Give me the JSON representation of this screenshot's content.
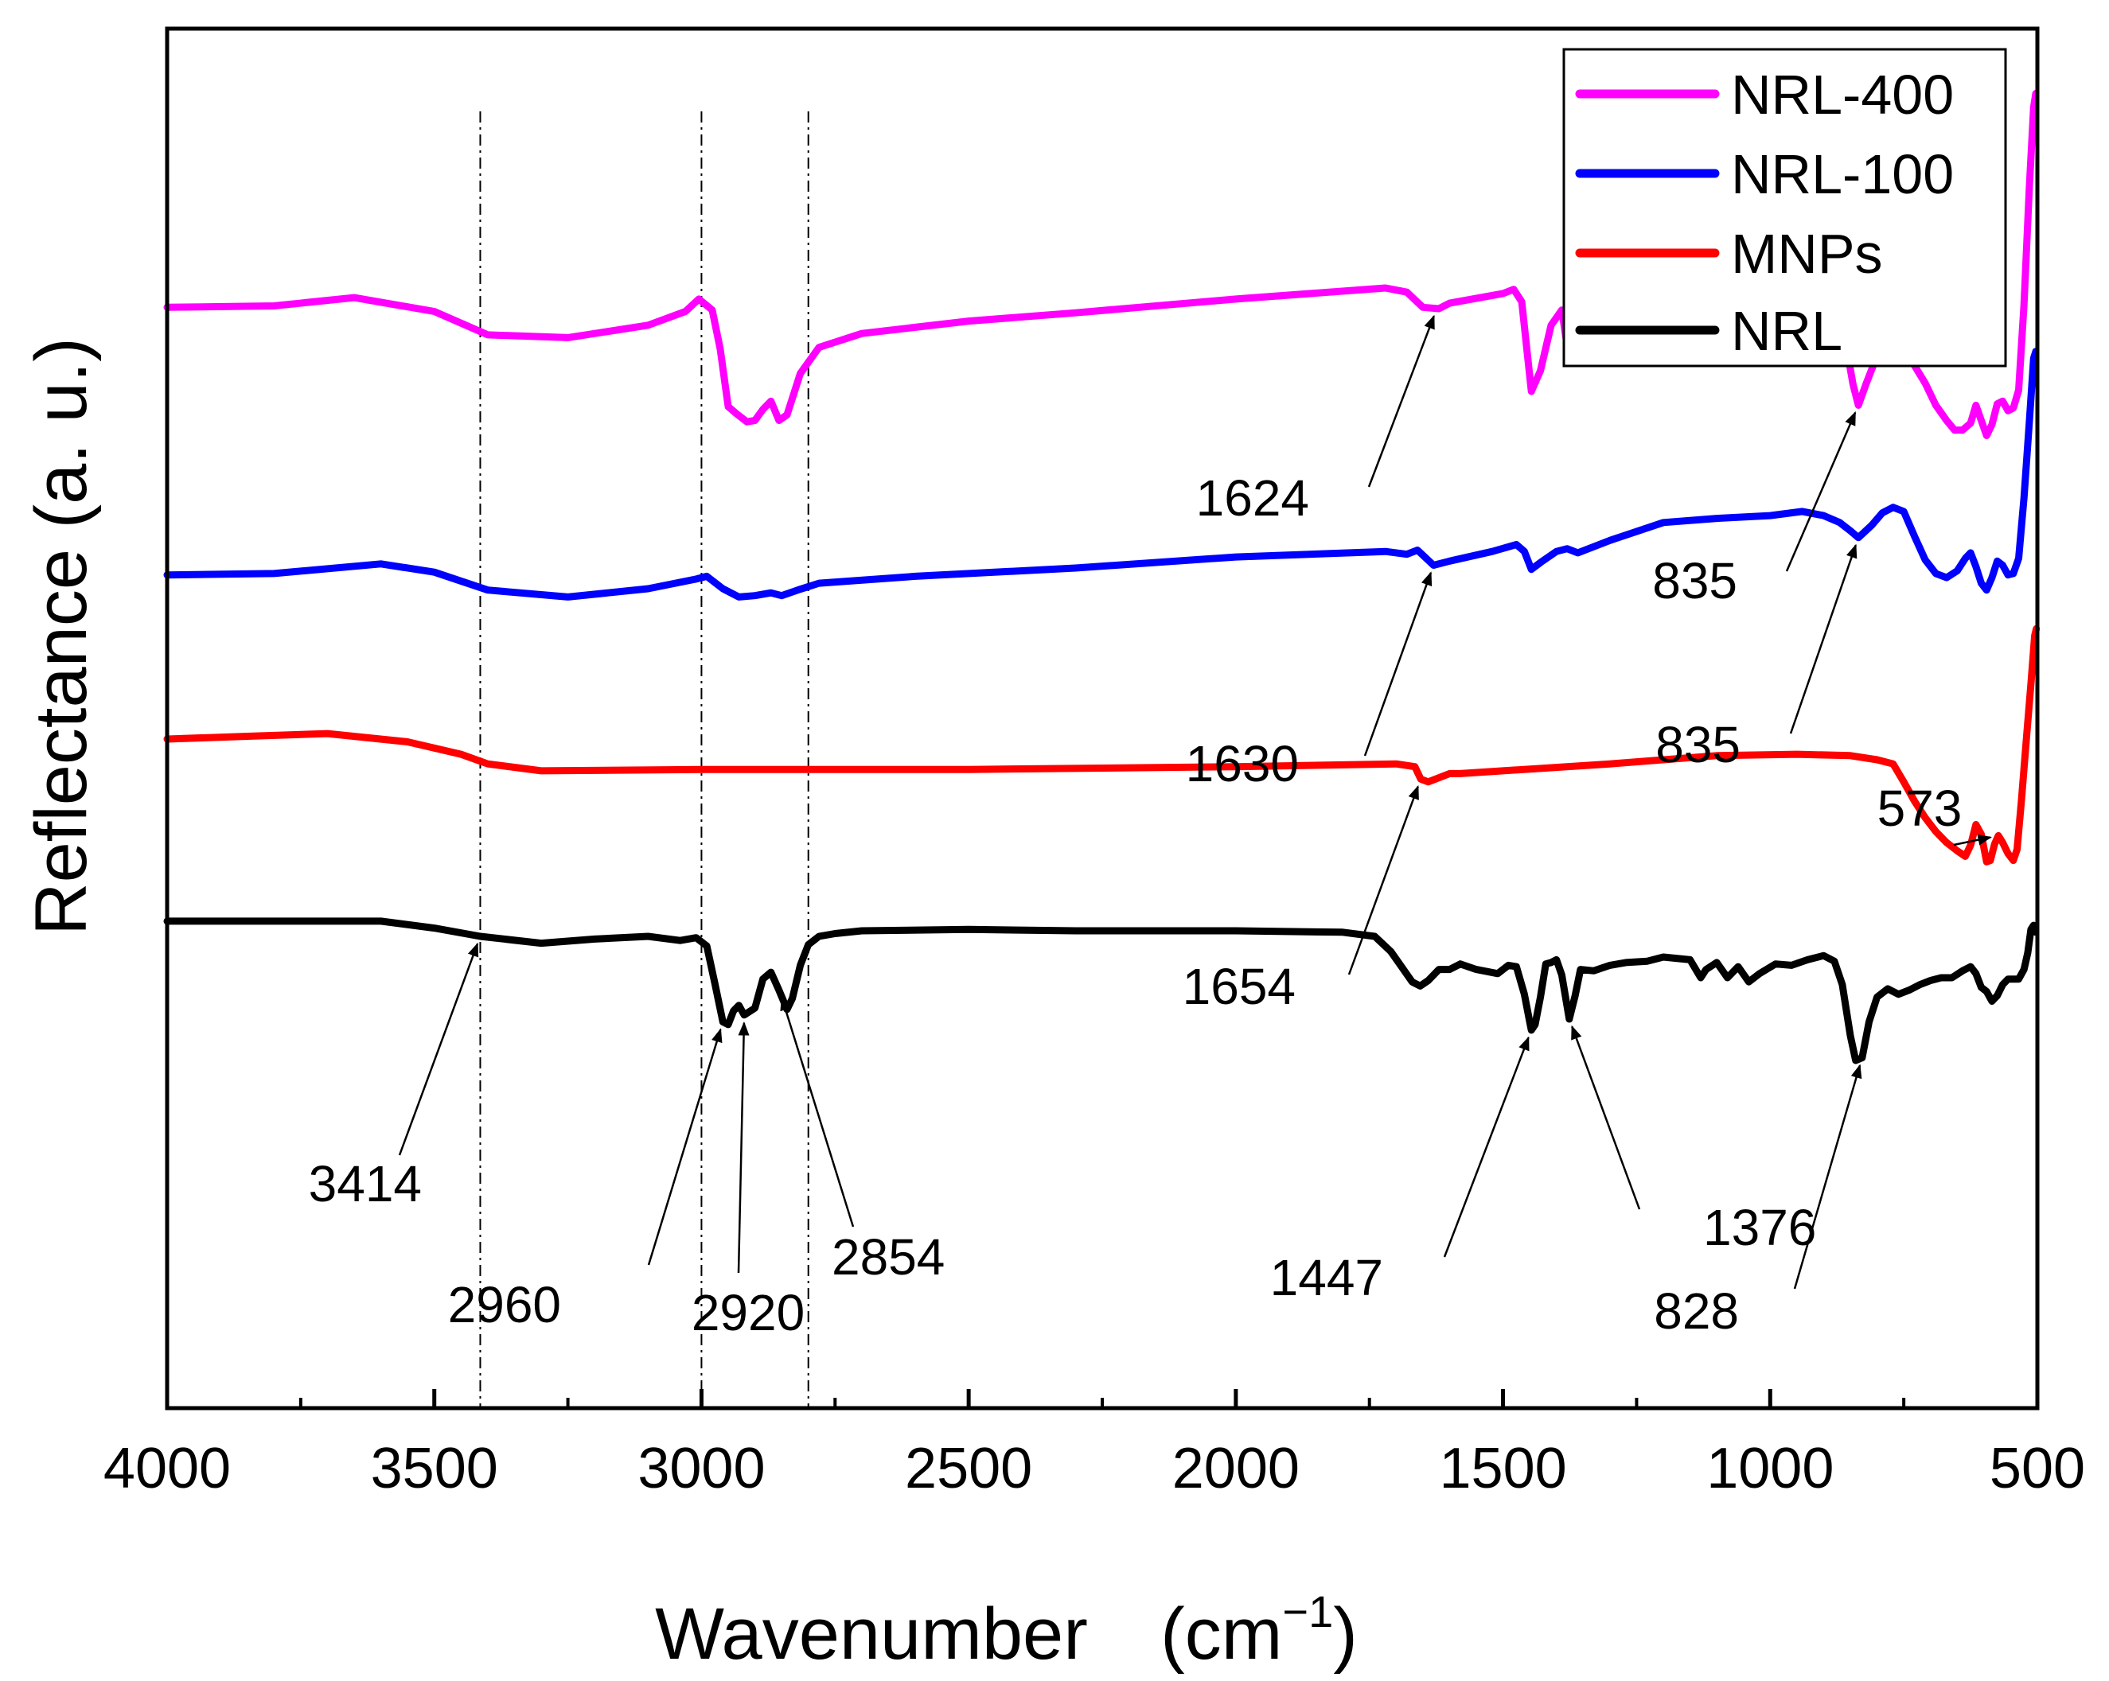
{
  "chart_data": {
    "type": "line",
    "title": "",
    "xlabel": "Wavenumber",
    "xlabel_unit": "(cm",
    "xlabel_exp": "−1",
    "xlabel_close": ")",
    "ylabel": "Reflectance (a. u.)",
    "xlim": [
      4000,
      500
    ],
    "ylim": [
      0,
      100
    ],
    "x_ticks": [
      4000,
      3500,
      3000,
      2500,
      2000,
      1500,
      1000,
      500
    ],
    "legend_position": "top-right",
    "guides": [
      3414,
      3000,
      2800
    ],
    "series": [
      {
        "name": "NRL-400",
        "color": "#ff00ff",
        "points": [
          [
            4000,
            79.8
          ],
          [
            3800,
            79.9
          ],
          [
            3650,
            80.5
          ],
          [
            3500,
            79.5
          ],
          [
            3400,
            77.8
          ],
          [
            3250,
            77.6
          ],
          [
            3100,
            78.5
          ],
          [
            3030,
            79.5
          ],
          [
            3005,
            80.4
          ],
          [
            2980,
            79.6
          ],
          [
            2965,
            76.8
          ],
          [
            2950,
            72.6
          ],
          [
            2935,
            72.1
          ],
          [
            2915,
            71.5
          ],
          [
            2900,
            71.6
          ],
          [
            2885,
            72.4
          ],
          [
            2870,
            73.0
          ],
          [
            2855,
            71.6
          ],
          [
            2840,
            72.0
          ],
          [
            2815,
            75.0
          ],
          [
            2780,
            76.9
          ],
          [
            2700,
            77.9
          ],
          [
            2500,
            78.8
          ],
          [
            2300,
            79.4
          ],
          [
            2000,
            80.4
          ],
          [
            1720,
            81.2
          ],
          [
            1680,
            80.9
          ],
          [
            1650,
            79.8
          ],
          [
            1620,
            79.7
          ],
          [
            1600,
            80.1
          ],
          [
            1500,
            80.8
          ],
          [
            1480,
            81.1
          ],
          [
            1465,
            80.2
          ],
          [
            1447,
            73.7
          ],
          [
            1430,
            75.2
          ],
          [
            1410,
            78.5
          ],
          [
            1390,
            79.6
          ],
          [
            1376,
            76.0
          ],
          [
            1360,
            78.9
          ],
          [
            1320,
            79.6
          ],
          [
            1280,
            80.1
          ],
          [
            1200,
            80.5
          ],
          [
            1160,
            81.2
          ],
          [
            1140,
            80.4
          ],
          [
            1120,
            79.8
          ],
          [
            1100,
            80.6
          ],
          [
            1080,
            80.0
          ],
          [
            1050,
            80.5
          ],
          [
            1020,
            79.9
          ],
          [
            980,
            80.2
          ],
          [
            930,
            80.5
          ],
          [
            880,
            80.1
          ],
          [
            860,
            77.5
          ],
          [
            845,
            74.2
          ],
          [
            835,
            72.7
          ],
          [
            820,
            74.3
          ],
          [
            800,
            76.3
          ],
          [
            770,
            77.2
          ],
          [
            740,
            76.2
          ],
          [
            710,
            74.3
          ],
          [
            690,
            72.7
          ],
          [
            670,
            71.6
          ],
          [
            655,
            70.9
          ],
          [
            640,
            70.9
          ],
          [
            625,
            71.4
          ],
          [
            615,
            72.7
          ],
          [
            605,
            71.6
          ],
          [
            595,
            70.5
          ],
          [
            585,
            71.3
          ],
          [
            575,
            72.8
          ],
          [
            565,
            73.0
          ],
          [
            555,
            72.3
          ],
          [
            545,
            72.5
          ],
          [
            535,
            73.8
          ],
          [
            525,
            80.0
          ],
          [
            515,
            88.5
          ],
          [
            507,
            94.3
          ],
          [
            503,
            95.3
          ]
        ]
      },
      {
        "name": "NRL-100",
        "color": "#0000ff",
        "points": [
          [
            4000,
            60.4
          ],
          [
            3800,
            60.5
          ],
          [
            3600,
            61.2
          ],
          [
            3500,
            60.6
          ],
          [
            3400,
            59.3
          ],
          [
            3250,
            58.8
          ],
          [
            3100,
            59.4
          ],
          [
            3010,
            60.1
          ],
          [
            2990,
            60.3
          ],
          [
            2960,
            59.4
          ],
          [
            2930,
            58.8
          ],
          [
            2900,
            58.9
          ],
          [
            2870,
            59.1
          ],
          [
            2850,
            58.9
          ],
          [
            2820,
            59.3
          ],
          [
            2780,
            59.8
          ],
          [
            2600,
            60.3
          ],
          [
            2300,
            60.9
          ],
          [
            2000,
            61.7
          ],
          [
            1720,
            62.1
          ],
          [
            1680,
            61.9
          ],
          [
            1660,
            62.2
          ],
          [
            1630,
            61.1
          ],
          [
            1600,
            61.4
          ],
          [
            1520,
            62.1
          ],
          [
            1475,
            62.6
          ],
          [
            1460,
            62.1
          ],
          [
            1447,
            60.8
          ],
          [
            1430,
            61.3
          ],
          [
            1400,
            62.1
          ],
          [
            1380,
            62.3
          ],
          [
            1360,
            62.0
          ],
          [
            1300,
            62.9
          ],
          [
            1200,
            64.2
          ],
          [
            1100,
            64.5
          ],
          [
            1000,
            64.7
          ],
          [
            940,
            65.0
          ],
          [
            900,
            64.7
          ],
          [
            870,
            64.2
          ],
          [
            850,
            63.6
          ],
          [
            835,
            63.1
          ],
          [
            810,
            64.0
          ],
          [
            790,
            64.9
          ],
          [
            770,
            65.3
          ],
          [
            750,
            65.0
          ],
          [
            730,
            63.2
          ],
          [
            710,
            61.5
          ],
          [
            690,
            60.5
          ],
          [
            670,
            60.2
          ],
          [
            650,
            60.7
          ],
          [
            635,
            61.6
          ],
          [
            625,
            62.0
          ],
          [
            615,
            61.0
          ],
          [
            605,
            59.8
          ],
          [
            595,
            59.3
          ],
          [
            585,
            60.2
          ],
          [
            575,
            61.4
          ],
          [
            565,
            61.1
          ],
          [
            555,
            60.4
          ],
          [
            545,
            60.5
          ],
          [
            535,
            61.6
          ],
          [
            525,
            66.0
          ],
          [
            515,
            71.5
          ],
          [
            507,
            76.1
          ],
          [
            503,
            76.6
          ]
        ]
      },
      {
        "name": "MNPs",
        "color": "#ff0000",
        "points": [
          [
            4000,
            48.5
          ],
          [
            3850,
            48.7
          ],
          [
            3700,
            48.9
          ],
          [
            3550,
            48.3
          ],
          [
            3450,
            47.4
          ],
          [
            3400,
            46.7
          ],
          [
            3300,
            46.2
          ],
          [
            3000,
            46.3
          ],
          [
            2500,
            46.3
          ],
          [
            2000,
            46.5
          ],
          [
            1700,
            46.7
          ],
          [
            1665,
            46.5
          ],
          [
            1654,
            45.6
          ],
          [
            1640,
            45.4
          ],
          [
            1600,
            46.0
          ],
          [
            1580,
            46.0
          ],
          [
            1500,
            46.2
          ],
          [
            1300,
            46.7
          ],
          [
            1100,
            47.3
          ],
          [
            950,
            47.4
          ],
          [
            850,
            47.3
          ],
          [
            800,
            47.0
          ],
          [
            770,
            46.7
          ],
          [
            750,
            45.4
          ],
          [
            730,
            44.0
          ],
          [
            710,
            42.8
          ],
          [
            690,
            41.8
          ],
          [
            670,
            41.0
          ],
          [
            650,
            40.4
          ],
          [
            635,
            40.0
          ],
          [
            625,
            40.8
          ],
          [
            615,
            42.3
          ],
          [
            605,
            41.6
          ],
          [
            595,
            39.6
          ],
          [
            588,
            39.7
          ],
          [
            580,
            40.9
          ],
          [
            573,
            41.5
          ],
          [
            565,
            41.0
          ],
          [
            555,
            40.2
          ],
          [
            545,
            39.7
          ],
          [
            538,
            40.5
          ],
          [
            530,
            44.0
          ],
          [
            520,
            48.8
          ],
          [
            512,
            52.5
          ],
          [
            505,
            56.0
          ],
          [
            502,
            56.5
          ]
        ]
      },
      {
        "name": "NRL",
        "color": "#000000",
        "points": [
          [
            4000,
            35.3
          ],
          [
            3800,
            35.3
          ],
          [
            3600,
            35.3
          ],
          [
            3500,
            34.8
          ],
          [
            3414,
            34.2
          ],
          [
            3300,
            33.7
          ],
          [
            3200,
            34.0
          ],
          [
            3100,
            34.2
          ],
          [
            3040,
            33.9
          ],
          [
            3010,
            34.1
          ],
          [
            2990,
            33.5
          ],
          [
            2975,
            30.8
          ],
          [
            2960,
            28.0
          ],
          [
            2950,
            27.8
          ],
          [
            2940,
            28.8
          ],
          [
            2930,
            29.2
          ],
          [
            2920,
            28.5
          ],
          [
            2900,
            29.0
          ],
          [
            2885,
            31.1
          ],
          [
            2870,
            31.6
          ],
          [
            2855,
            30.3
          ],
          [
            2840,
            28.9
          ],
          [
            2830,
            29.7
          ],
          [
            2815,
            32.1
          ],
          [
            2800,
            33.6
          ],
          [
            2780,
            34.2
          ],
          [
            2750,
            34.4
          ],
          [
            2700,
            34.6
          ],
          [
            2500,
            34.7
          ],
          [
            2300,
            34.6
          ],
          [
            2000,
            34.6
          ],
          [
            1800,
            34.5
          ],
          [
            1740,
            34.2
          ],
          [
            1710,
            33.1
          ],
          [
            1690,
            32.0
          ],
          [
            1670,
            30.9
          ],
          [
            1655,
            30.6
          ],
          [
            1640,
            31.0
          ],
          [
            1620,
            31.8
          ],
          [
            1600,
            31.8
          ],
          [
            1580,
            32.2
          ],
          [
            1550,
            31.8
          ],
          [
            1510,
            31.5
          ],
          [
            1490,
            32.1
          ],
          [
            1475,
            32.0
          ],
          [
            1460,
            30.0
          ],
          [
            1450,
            28.0
          ],
          [
            1447,
            27.4
          ],
          [
            1440,
            27.8
          ],
          [
            1430,
            29.8
          ],
          [
            1420,
            32.2
          ],
          [
            1410,
            32.3
          ],
          [
            1400,
            32.5
          ],
          [
            1390,
            31.4
          ],
          [
            1376,
            28.2
          ],
          [
            1365,
            29.9
          ],
          [
            1355,
            31.8
          ],
          [
            1330,
            31.7
          ],
          [
            1300,
            32.1
          ],
          [
            1270,
            32.3
          ],
          [
            1230,
            32.4
          ],
          [
            1200,
            32.7
          ],
          [
            1150,
            32.5
          ],
          [
            1130,
            31.2
          ],
          [
            1120,
            31.8
          ],
          [
            1100,
            32.3
          ],
          [
            1080,
            31.2
          ],
          [
            1060,
            32.0
          ],
          [
            1040,
            30.9
          ],
          [
            1020,
            31.5
          ],
          [
            990,
            32.2
          ],
          [
            960,
            32.1
          ],
          [
            930,
            32.5
          ],
          [
            900,
            32.8
          ],
          [
            880,
            32.4
          ],
          [
            865,
            30.7
          ],
          [
            850,
            27.0
          ],
          [
            840,
            25.2
          ],
          [
            828,
            25.4
          ],
          [
            815,
            28.0
          ],
          [
            800,
            29.8
          ],
          [
            780,
            30.4
          ],
          [
            760,
            30.0
          ],
          [
            740,
            30.3
          ],
          [
            720,
            30.7
          ],
          [
            700,
            31.0
          ],
          [
            680,
            31.2
          ],
          [
            660,
            31.2
          ],
          [
            640,
            31.7
          ],
          [
            625,
            32.0
          ],
          [
            615,
            31.5
          ],
          [
            605,
            30.5
          ],
          [
            595,
            30.2
          ],
          [
            585,
            29.5
          ],
          [
            575,
            29.9
          ],
          [
            565,
            30.7
          ],
          [
            555,
            31.1
          ],
          [
            545,
            31.1
          ],
          [
            535,
            31.1
          ],
          [
            525,
            31.8
          ],
          [
            518,
            33.0
          ],
          [
            512,
            34.7
          ],
          [
            507,
            35.0
          ],
          [
            503,
            34.5
          ]
        ]
      }
    ],
    "annotations": [
      {
        "text": "1624",
        "x": 1624,
        "y": 79.7
      },
      {
        "text": "835",
        "x": 835,
        "y": 72.7
      },
      {
        "text": "1630",
        "x": 1630,
        "y": 61.1
      },
      {
        "text": "835",
        "x": 835,
        "y": 63.1
      },
      {
        "text": "573",
        "x": 573,
        "y": 41.5
      },
      {
        "text": "1654",
        "x": 1654,
        "y": 45.6
      },
      {
        "text": "3414",
        "x": 3414,
        "y": 34.2
      },
      {
        "text": "2960",
        "x": 2960,
        "y": 28.0
      },
      {
        "text": "2920",
        "x": 2920,
        "y": 28.5
      },
      {
        "text": "2854",
        "x": 2854,
        "y": 30.3
      },
      {
        "text": "1447",
        "x": 1447,
        "y": 27.4
      },
      {
        "text": "1376",
        "x": 1376,
        "y": 28.2
      },
      {
        "text": "828",
        "x": 828,
        "y": 25.4
      }
    ]
  }
}
